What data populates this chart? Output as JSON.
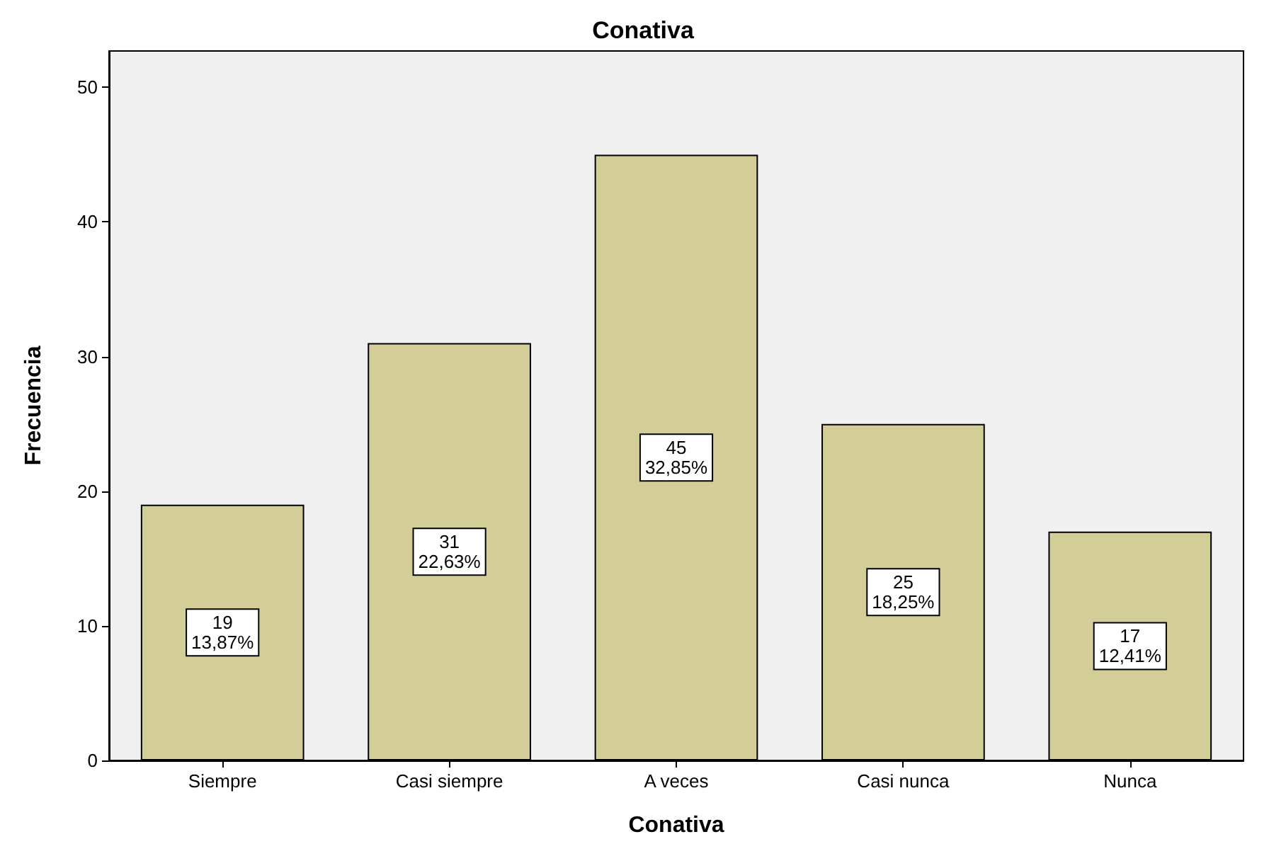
{
  "chart_data": {
    "type": "bar",
    "title": "Conativa",
    "xlabel": "Conativa",
    "ylabel": "Frecuencia",
    "categories": [
      "Siempre",
      "Casi siempre",
      "A veces",
      "Casi nunca",
      "Nunca"
    ],
    "values": [
      19,
      31,
      45,
      25,
      17
    ],
    "value_labels": [
      "19\n13,87%",
      "31\n22,63%",
      "45\n32,85%",
      "25\n18,25%",
      "17\n12,41%"
    ],
    "color": "#d3ce97",
    "ylim": [
      0,
      52.7
    ],
    "yticks": [
      0,
      10,
      20,
      30,
      40,
      50
    ],
    "grid": false
  }
}
